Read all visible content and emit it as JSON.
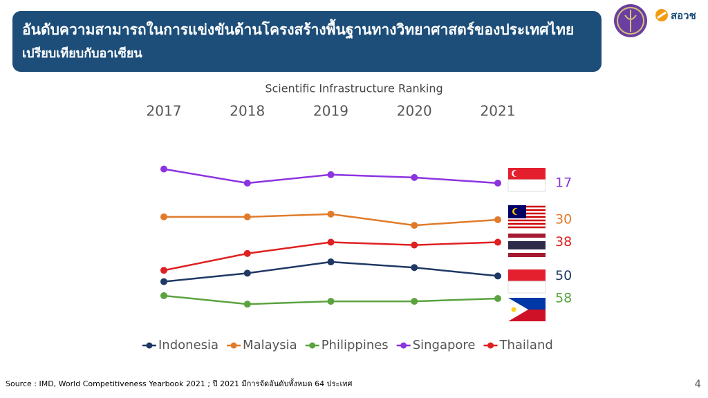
{
  "header": {
    "title": "อันดับความสามารถในการแข่งขันด้านโครงสร้างพื้นฐานทางวิทยาศาสตร์ของประเทศไทย",
    "subtitle": "เปรียบเทียบกับอาเซียน"
  },
  "logo_text": "สอวช",
  "chart_data": {
    "type": "line",
    "title": "Scientific Infrastructure Ranking",
    "categories": [
      "2017",
      "2018",
      "2019",
      "2020",
      "2021"
    ],
    "ylim": [
      10,
      62
    ],
    "y_inverted": true,
    "grid": false,
    "legend": "bottom",
    "series": [
      {
        "name": "Indonesia",
        "color": "#1f3864",
        "values": [
          52,
          49,
          45,
          47,
          50
        ]
      },
      {
        "name": "Malaysia",
        "color": "#e07b2a",
        "values": [
          29,
          29,
          28,
          32,
          30
        ]
      },
      {
        "name": "Philippines",
        "color": "#5aa33f",
        "values": [
          57,
          60,
          59,
          59,
          58
        ]
      },
      {
        "name": "Singapore",
        "color": "#8c34e0",
        "values": [
          12,
          17,
          14,
          15,
          17
        ]
      },
      {
        "name": "Thailand",
        "color": "#e02020",
        "values": [
          48,
          42,
          38,
          39,
          38
        ]
      }
    ]
  },
  "footer": {
    "source": "Source : IMD, World Competitiveness Yearbook 2021 ; ปี 2021 มีการจัดอันดับทั้งหมด 64 ประเทศ",
    "page": "4"
  }
}
